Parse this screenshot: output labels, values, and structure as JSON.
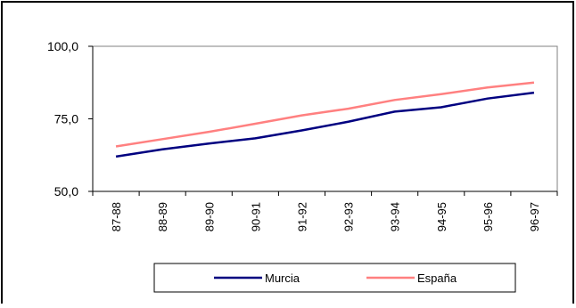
{
  "chart_data": {
    "type": "line",
    "title": "",
    "xlabel": "",
    "ylabel": "",
    "categories": [
      "87-88",
      "88-89",
      "89-90",
      "90-91",
      "91-92",
      "92-93",
      "93-94",
      "94-95",
      "95-96",
      "96-97"
    ],
    "ylim": [
      50,
      100
    ],
    "yticks": [
      "50,0",
      "75,0",
      "100,0"
    ],
    "grid": false,
    "plot_background": "#ffffff",
    "legend_placement": "bottom",
    "series": [
      {
        "name": "Murcia",
        "color": "#000080",
        "values": [
          62.0,
          64.5,
          66.5,
          68.3,
          71.0,
          74.0,
          77.5,
          79.0,
          82.0,
          84.0
        ]
      },
      {
        "name": "España",
        "color": "#ff8080",
        "values": [
          65.5,
          68.0,
          70.5,
          73.3,
          76.2,
          78.5,
          81.5,
          83.5,
          85.8,
          87.5
        ]
      }
    ]
  }
}
